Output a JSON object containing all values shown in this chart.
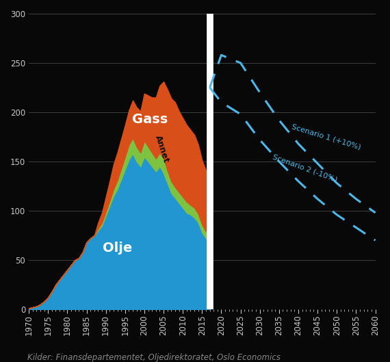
{
  "background_color": "#080808",
  "plot_bg_color": "#080808",
  "text_color": "#c8c8c8",
  "grid_color": "#484848",
  "years_hist": [
    1970,
    1971,
    1972,
    1973,
    1974,
    1975,
    1976,
    1977,
    1978,
    1979,
    1980,
    1981,
    1982,
    1983,
    1984,
    1985,
    1986,
    1987,
    1988,
    1989,
    1990,
    1991,
    1992,
    1993,
    1994,
    1995,
    1996,
    1997,
    1998,
    1999,
    2000,
    2001,
    2002,
    2003,
    2004,
    2005,
    2006,
    2007,
    2008,
    2009,
    2010,
    2011,
    2012,
    2013,
    2014,
    2015,
    2016,
    2017
  ],
  "olje": [
    1,
    2,
    3,
    5,
    8,
    12,
    18,
    25,
    30,
    35,
    40,
    45,
    50,
    52,
    58,
    68,
    72,
    75,
    80,
    85,
    95,
    105,
    115,
    122,
    132,
    142,
    152,
    158,
    150,
    145,
    155,
    150,
    145,
    140,
    145,
    138,
    128,
    118,
    113,
    108,
    103,
    98,
    96,
    93,
    88,
    78,
    72,
    75
  ],
  "annet": [
    0,
    0,
    0,
    0,
    0,
    0,
    0,
    0,
    0,
    0,
    0,
    0,
    0,
    0,
    0,
    0,
    0,
    0,
    2,
    3,
    4,
    5,
    7,
    9,
    11,
    13,
    15,
    16,
    15,
    14,
    16,
    15,
    14,
    13,
    14,
    15,
    13,
    12,
    11,
    11,
    11,
    11,
    10,
    10,
    9,
    8,
    7,
    7
  ],
  "gass": [
    0,
    0,
    0,
    0,
    0,
    0,
    0,
    0,
    0,
    0,
    0,
    0,
    0,
    0,
    0,
    0,
    0,
    0,
    6,
    10,
    15,
    20,
    25,
    28,
    30,
    32,
    35,
    38,
    40,
    42,
    48,
    52,
    56,
    62,
    68,
    78,
    82,
    84,
    86,
    82,
    80,
    78,
    76,
    74,
    70,
    65,
    62,
    60
  ],
  "scenario1_years": [
    2017,
    2020,
    2025,
    2030,
    2035,
    2040,
    2045,
    2050,
    2055,
    2060
  ],
  "scenario1_values": [
    225,
    258,
    250,
    220,
    192,
    168,
    148,
    128,
    112,
    98
  ],
  "scenario2_years": [
    2017,
    2020,
    2025,
    2030,
    2035,
    2040,
    2045,
    2050,
    2055,
    2060
  ],
  "scenario2_values": [
    225,
    210,
    198,
    172,
    150,
    130,
    112,
    96,
    83,
    70
  ],
  "dashed_color": "#4ab8e8",
  "olje_color": "#2196d0",
  "annet_color": "#7dc241",
  "gass_color": "#d94f1a",
  "separator_year": 2017,
  "ylim": [
    0,
    300
  ],
  "yticks": [
    0,
    50,
    100,
    150,
    200,
    250,
    300
  ],
  "xtick_years": [
    1970,
    1975,
    1980,
    1985,
    1990,
    1995,
    2000,
    2005,
    2010,
    2015,
    2020,
    2025,
    2030,
    2035,
    2040,
    2045,
    2050,
    2055,
    2060
  ],
  "label_olje": "Olje",
  "label_gass": "Gass",
  "label_scenario1": "Scenario 1 (+10%)",
  "label_scenario2": "Scenario 2 (-10%)",
  "caption": "Kilder: Finansdepartementet, Oljedirektoratet, Oslo Economics",
  "caption_fontsize": 8.5,
  "tick_fontsize": 8.5
}
